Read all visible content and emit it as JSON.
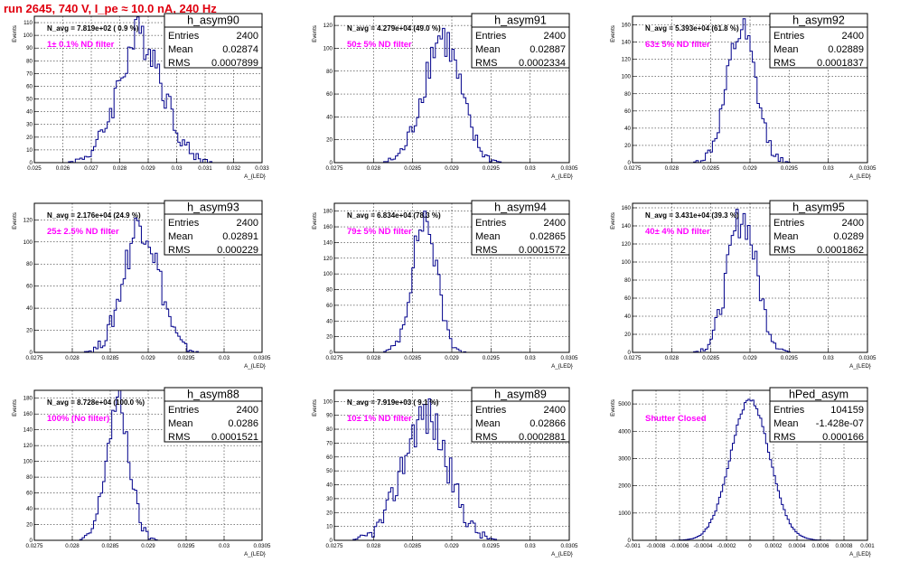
{
  "header": {
    "title": "run 2645,   740 V, I_pe ≈ 10.0 nA, 240 Hz"
  },
  "axis_labels": {
    "x": "A_{LED}",
    "y": "Events"
  },
  "stat_labels": {
    "entries": "Entries",
    "mean": "Mean",
    "rms": "RMS"
  },
  "colors": {
    "title": "#e0000f",
    "histogram": "#00008b",
    "filter_text": "#ff00ff",
    "frame": "#000000"
  },
  "chart_data": [
    {
      "type": "histogram",
      "name": "h_asym90",
      "annotation": "N_avg = 7.819e+02 ( 0.9 %)",
      "filter_label": "1± 0.1% ND filter",
      "stats": {
        "entries": "2400",
        "mean": "0.02874",
        "rms": "0.0007899"
      },
      "x_range": [
        0.025,
        0.033
      ],
      "y_range": [
        0,
        115
      ],
      "x_ticks": [
        "0.025",
        "0.026",
        "0.027",
        "0.028",
        "0.029",
        "0.03",
        "0.031",
        "0.032",
        "0.033"
      ],
      "x_tick_values": [
        0.025,
        0.026,
        0.027,
        0.028,
        0.029,
        0.03,
        0.031,
        0.032,
        0.033
      ],
      "y_ticks": [
        "0",
        "10",
        "20",
        "30",
        "40",
        "50",
        "60",
        "70",
        "80",
        "90",
        "100",
        "110"
      ],
      "y_tick_values": [
        0,
        10,
        20,
        30,
        40,
        50,
        60,
        70,
        80,
        90,
        100,
        110
      ],
      "shape": {
        "mean": 0.02874,
        "sigma": 0.00079,
        "peak": 100,
        "bins": 100,
        "seed": 3
      }
    },
    {
      "type": "histogram",
      "name": "h_asym91",
      "annotation": "N_avg = 4.279e+04 (49.0 %)",
      "filter_label": "50± 5% ND filter",
      "stats": {
        "entries": "2400",
        "mean": "0.02887",
        "rms": "0.0002334"
      },
      "x_range": [
        0.0275,
        0.0305
      ],
      "y_range": [
        0,
        128
      ],
      "x_ticks": [
        "0.0275",
        "0.028",
        "0.0285",
        "0.029",
        "0.0295",
        "0.03",
        "0.0305"
      ],
      "x_tick_values": [
        0.0275,
        0.028,
        0.0285,
        0.029,
        0.0295,
        0.03,
        0.0305
      ],
      "y_ticks": [
        "0",
        "20",
        "40",
        "60",
        "80",
        "100",
        "120"
      ],
      "y_tick_values": [
        0,
        20,
        40,
        60,
        80,
        100,
        120
      ],
      "shape": {
        "mean": 0.02887,
        "sigma": 0.000233,
        "peak": 110,
        "bins": 100,
        "seed": 7
      }
    },
    {
      "type": "histogram",
      "name": "h_asym92",
      "annotation": "N_avg = 5.393e+04 (61.8 %)",
      "filter_label": "63± 5% ND filter",
      "stats": {
        "entries": "2400",
        "mean": "0.02889",
        "rms": "0.0001837"
      },
      "x_range": [
        0.0275,
        0.0305
      ],
      "y_range": [
        0,
        170
      ],
      "x_ticks": [
        "0.0275",
        "0.028",
        "0.0285",
        "0.029",
        "0.0295",
        "0.03",
        "0.0305"
      ],
      "x_tick_values": [
        0.0275,
        0.028,
        0.0285,
        0.029,
        0.0295,
        0.03,
        0.0305
      ],
      "y_ticks": [
        "0",
        "20",
        "40",
        "60",
        "80",
        "100",
        "120",
        "140",
        "160"
      ],
      "y_tick_values": [
        0,
        20,
        40,
        60,
        80,
        100,
        120,
        140,
        160
      ],
      "shape": {
        "mean": 0.02889,
        "sigma": 0.000184,
        "peak": 150,
        "bins": 100,
        "seed": 11
      }
    },
    {
      "type": "histogram",
      "name": "h_asym93",
      "annotation": "N_avg = 2.176e+04 (24.9 %)",
      "filter_label": "25± 2.5% ND filter",
      "stats": {
        "entries": "2400",
        "mean": "0.02891",
        "rms": "0.000229"
      },
      "x_range": [
        0.0275,
        0.0305
      ],
      "y_range": [
        0,
        135
      ],
      "x_ticks": [
        "0.0275",
        "0.028",
        "0.0285",
        "0.029",
        "0.0295",
        "0.03",
        "0.0305"
      ],
      "x_tick_values": [
        0.0275,
        0.028,
        0.0285,
        0.029,
        0.0295,
        0.03,
        0.0305
      ],
      "y_ticks": [
        "0",
        "20",
        "40",
        "60",
        "80",
        "100",
        "120"
      ],
      "y_tick_values": [
        0,
        20,
        40,
        60,
        80,
        100,
        120
      ],
      "shape": {
        "mean": 0.02891,
        "sigma": 0.000229,
        "peak": 118,
        "bins": 100,
        "seed": 19
      }
    },
    {
      "type": "histogram",
      "name": "h_asym94",
      "annotation": "N_avg = 6.834e+04 (78.3 %)",
      "filter_label": "79± 5% ND filter",
      "stats": {
        "entries": "2400",
        "mean": "0.02865",
        "rms": "0.0001572"
      },
      "x_range": [
        0.0275,
        0.0305
      ],
      "y_range": [
        0,
        190
      ],
      "x_ticks": [
        "0.0275",
        "0.028",
        "0.0285",
        "0.029",
        "0.0295",
        "0.03",
        "0.0305"
      ],
      "x_tick_values": [
        0.0275,
        0.028,
        0.0285,
        0.029,
        0.0295,
        0.03,
        0.0305
      ],
      "y_ticks": [
        "0",
        "20",
        "40",
        "60",
        "80",
        "100",
        "120",
        "140",
        "160",
        "180"
      ],
      "y_tick_values": [
        0,
        20,
        40,
        60,
        80,
        100,
        120,
        140,
        160,
        180
      ],
      "shape": {
        "mean": 0.02865,
        "sigma": 0.000157,
        "peak": 170,
        "bins": 100,
        "seed": 23
      }
    },
    {
      "type": "histogram",
      "name": "h_asym95",
      "annotation": "N_avg = 3.431e+04 (39.3 %)",
      "filter_label": "40± 4% ND filter",
      "stats": {
        "entries": "2400",
        "mean": "0.0289",
        "rms": "0.0001862"
      },
      "x_range": [
        0.0275,
        0.0305
      ],
      "y_range": [
        0,
        165
      ],
      "x_ticks": [
        "0.0275",
        "0.028",
        "0.0285",
        "0.029",
        "0.0295",
        "0.03",
        "0.0305"
      ],
      "x_tick_values": [
        0.0275,
        0.028,
        0.0285,
        0.029,
        0.0295,
        0.03,
        0.0305
      ],
      "y_ticks": [
        "0",
        "20",
        "40",
        "60",
        "80",
        "100",
        "120",
        "140",
        "160"
      ],
      "y_tick_values": [
        0,
        20,
        40,
        60,
        80,
        100,
        120,
        140,
        160
      ],
      "shape": {
        "mean": 0.0289,
        "sigma": 0.000186,
        "peak": 150,
        "bins": 100,
        "seed": 31
      }
    },
    {
      "type": "histogram",
      "name": "h_asym88",
      "annotation": "N_avg = 8.728e+04 (100.0 %)",
      "filter_label": "100% (No filter)",
      "stats": {
        "entries": "2400",
        "mean": "0.0286",
        "rms": "0.0001521"
      },
      "x_range": [
        0.0275,
        0.0305
      ],
      "y_range": [
        0,
        190
      ],
      "x_ticks": [
        "0.0275",
        "0.028",
        "0.0285",
        "0.029",
        "0.0295",
        "0.03",
        "0.0305"
      ],
      "x_tick_values": [
        0.0275,
        0.028,
        0.0285,
        0.029,
        0.0295,
        0.03,
        0.0305
      ],
      "y_ticks": [
        "0",
        "20",
        "40",
        "60",
        "80",
        "100",
        "120",
        "140",
        "160",
        "180"
      ],
      "y_tick_values": [
        0,
        20,
        40,
        60,
        80,
        100,
        120,
        140,
        160,
        180
      ],
      "shape": {
        "mean": 0.0286,
        "sigma": 0.000152,
        "peak": 172,
        "bins": 100,
        "seed": 37
      }
    },
    {
      "type": "histogram",
      "name": "h_asym89",
      "annotation": "N_avg = 7.919e+03 ( 9.1 %)",
      "filter_label": "10± 1% ND filter",
      "stats": {
        "entries": "2400",
        "mean": "0.02866",
        "rms": "0.0002881"
      },
      "x_range": [
        0.0275,
        0.0305
      ],
      "y_range": [
        0,
        108
      ],
      "x_ticks": [
        "0.0275",
        "0.028",
        "0.0285",
        "0.029",
        "0.0295",
        "0.03",
        "0.0305"
      ],
      "x_tick_values": [
        0.0275,
        0.028,
        0.0285,
        0.029,
        0.0295,
        0.03,
        0.0305
      ],
      "y_ticks": [
        "0",
        "10",
        "20",
        "30",
        "40",
        "50",
        "60",
        "70",
        "80",
        "90",
        "100"
      ],
      "y_tick_values": [
        0,
        10,
        20,
        30,
        40,
        50,
        60,
        70,
        80,
        90,
        100
      ],
      "shape": {
        "mean": 0.02866,
        "sigma": 0.000288,
        "peak": 90,
        "bins": 100,
        "seed": 41
      }
    },
    {
      "type": "histogram",
      "name": "hPed_asym",
      "annotation": "",
      "filter_label": "Shutter Closed",
      "stats": {
        "entries": "104159",
        "mean": "-1.428e-07",
        "rms": "0.000166"
      },
      "x_range": [
        -0.001,
        0.001
      ],
      "y_range": [
        0,
        5500
      ],
      "x_ticks": [
        "-0.001",
        "-0.0008",
        "-0.0006",
        "-0.0004",
        "-0.0002",
        "0",
        "0.0002",
        "0.0004",
        "0.0006",
        "0.0008",
        "0.001"
      ],
      "x_tick_values": [
        -0.001,
        -0.0008,
        -0.0006,
        -0.0004,
        -0.0002,
        0,
        0.0002,
        0.0004,
        0.0006,
        0.0008,
        0.001
      ],
      "y_ticks": [
        "0",
        "1000",
        "2000",
        "3000",
        "4000",
        "5000"
      ],
      "y_tick_values": [
        0,
        1000,
        2000,
        3000,
        4000,
        5000
      ],
      "shape": {
        "mean": 0.0,
        "sigma": 0.000166,
        "peak": 5150,
        "bins": 120,
        "seed": 0
      }
    }
  ]
}
